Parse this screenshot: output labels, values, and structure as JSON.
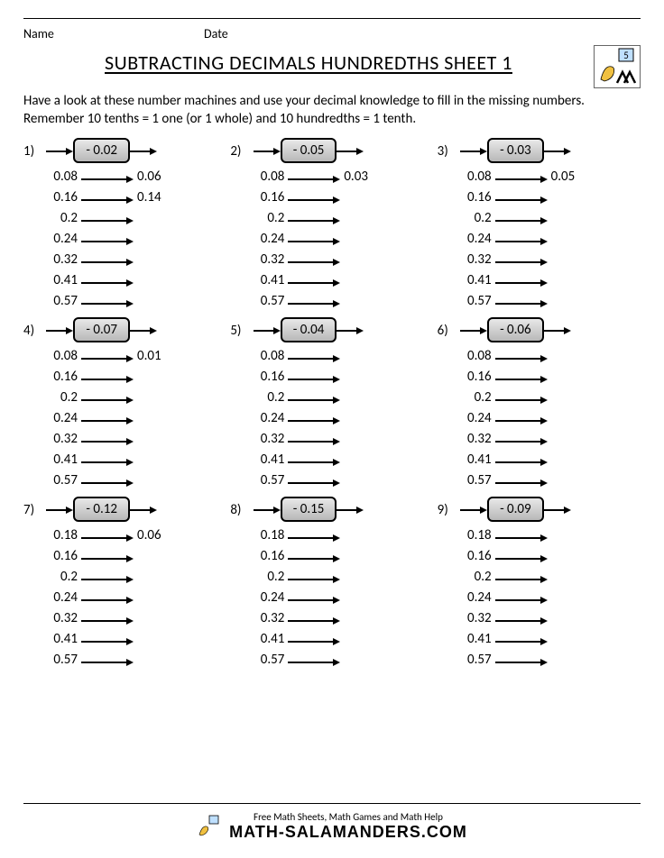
{
  "header": {
    "name_label": "Name",
    "date_label": "Date"
  },
  "title": "SUBTRACTING DECIMALS HUNDREDTHS SHEET 1",
  "instructions": "Have a look at these number machines and use your decimal knowledge to fill in the missing numbers. Remember 10 tenths = 1 one (or 1 whole) and 10 hundredths = 1 tenth.",
  "style": {
    "box_bg_top": "#e8e8e8",
    "box_bg_bottom": "#b8b8b8",
    "border_color": "#000000",
    "text_color": "#000000",
    "font_family": "Calibri, Arial, sans-serif",
    "title_fontsize": 22,
    "body_fontsize": 15,
    "grid_cols": 3,
    "grid_rows": 3
  },
  "problems": [
    {
      "n": "1)",
      "op": "- 0.02",
      "rows": [
        {
          "in": "0.08",
          "out": "0.06"
        },
        {
          "in": "0.16",
          "out": "0.14"
        },
        {
          "in": "0.2",
          "out": ""
        },
        {
          "in": "0.24",
          "out": ""
        },
        {
          "in": "0.32",
          "out": ""
        },
        {
          "in": "0.41",
          "out": ""
        },
        {
          "in": "0.57",
          "out": ""
        }
      ]
    },
    {
      "n": "2)",
      "op": "- 0.05",
      "rows": [
        {
          "in": "0.08",
          "out": "0.03"
        },
        {
          "in": "0.16",
          "out": ""
        },
        {
          "in": "0.2",
          "out": ""
        },
        {
          "in": "0.24",
          "out": ""
        },
        {
          "in": "0.32",
          "out": ""
        },
        {
          "in": "0.41",
          "out": ""
        },
        {
          "in": "0.57",
          "out": ""
        }
      ]
    },
    {
      "n": "3)",
      "op": "- 0.03",
      "rows": [
        {
          "in": "0.08",
          "out": "0.05"
        },
        {
          "in": "0.16",
          "out": ""
        },
        {
          "in": "0.2",
          "out": ""
        },
        {
          "in": "0.24",
          "out": ""
        },
        {
          "in": "0.32",
          "out": ""
        },
        {
          "in": "0.41",
          "out": ""
        },
        {
          "in": "0.57",
          "out": ""
        }
      ]
    },
    {
      "n": "4)",
      "op": "- 0.07",
      "rows": [
        {
          "in": "0.08",
          "out": "0.01"
        },
        {
          "in": "0.16",
          "out": ""
        },
        {
          "in": "0.2",
          "out": ""
        },
        {
          "in": "0.24",
          "out": ""
        },
        {
          "in": "0.32",
          "out": ""
        },
        {
          "in": "0.41",
          "out": ""
        },
        {
          "in": "0.57",
          "out": ""
        }
      ]
    },
    {
      "n": "5)",
      "op": "- 0.04",
      "rows": [
        {
          "in": "0.08",
          "out": ""
        },
        {
          "in": "0.16",
          "out": ""
        },
        {
          "in": "0.2",
          "out": ""
        },
        {
          "in": "0.24",
          "out": ""
        },
        {
          "in": "0.32",
          "out": ""
        },
        {
          "in": "0.41",
          "out": ""
        },
        {
          "in": "0.57",
          "out": ""
        }
      ]
    },
    {
      "n": "6)",
      "op": "- 0.06",
      "rows": [
        {
          "in": "0.08",
          "out": ""
        },
        {
          "in": "0.16",
          "out": ""
        },
        {
          "in": "0.2",
          "out": ""
        },
        {
          "in": "0.24",
          "out": ""
        },
        {
          "in": "0.32",
          "out": ""
        },
        {
          "in": "0.41",
          "out": ""
        },
        {
          "in": "0.57",
          "out": ""
        }
      ]
    },
    {
      "n": "7)",
      "op": "- 0.12",
      "rows": [
        {
          "in": "0.18",
          "out": "0.06"
        },
        {
          "in": "0.16",
          "out": ""
        },
        {
          "in": "0.2",
          "out": ""
        },
        {
          "in": "0.24",
          "out": ""
        },
        {
          "in": "0.32",
          "out": ""
        },
        {
          "in": "0.41",
          "out": ""
        },
        {
          "in": "0.57",
          "out": ""
        }
      ]
    },
    {
      "n": "8)",
      "op": "- 0.15",
      "rows": [
        {
          "in": "0.18",
          "out": ""
        },
        {
          "in": "0.16",
          "out": ""
        },
        {
          "in": "0.2",
          "out": ""
        },
        {
          "in": "0.24",
          "out": ""
        },
        {
          "in": "0.32",
          "out": ""
        },
        {
          "in": "0.41",
          "out": ""
        },
        {
          "in": "0.57",
          "out": ""
        }
      ]
    },
    {
      "n": "9)",
      "op": "- 0.09",
      "rows": [
        {
          "in": "0.18",
          "out": ""
        },
        {
          "in": "0.16",
          "out": ""
        },
        {
          "in": "0.2",
          "out": ""
        },
        {
          "in": "0.24",
          "out": ""
        },
        {
          "in": "0.32",
          "out": ""
        },
        {
          "in": "0.41",
          "out": ""
        },
        {
          "in": "0.57",
          "out": ""
        }
      ]
    }
  ],
  "footer": {
    "tag": "Free Math Sheets, Math Games and Math Help",
    "brand": "MATH-SALAMANDERS.COM"
  }
}
